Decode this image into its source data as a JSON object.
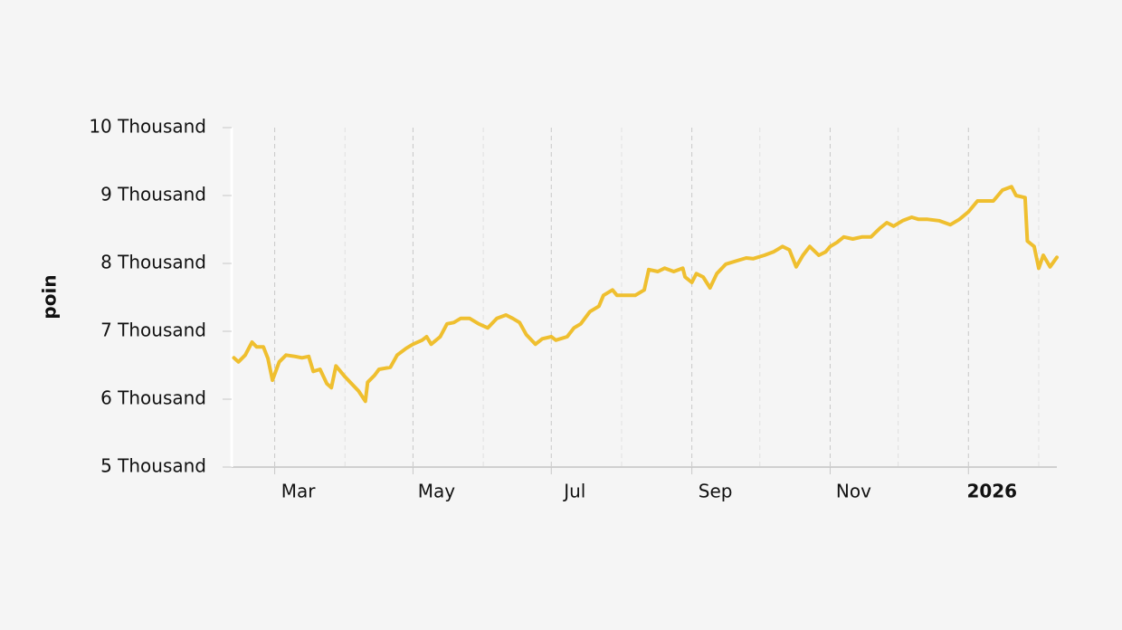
{
  "chart_data": {
    "type": "line",
    "ylabel": "poin",
    "x": [
      "2025-02-11",
      "2025-02-13",
      "2025-02-16",
      "2025-02-19",
      "2025-02-21",
      "2025-02-24",
      "2025-02-26",
      "2025-02-28",
      "2025-03-03",
      "2025-03-06",
      "2025-03-10",
      "2025-03-13",
      "2025-03-16",
      "2025-03-18",
      "2025-03-21",
      "2025-03-24",
      "2025-03-26",
      "2025-03-28",
      "2025-04-01",
      "2025-04-07",
      "2025-04-10",
      "2025-04-11",
      "2025-04-14",
      "2025-04-16",
      "2025-04-21",
      "2025-04-24",
      "2025-04-28",
      "2025-05-01",
      "2025-05-05",
      "2025-05-07",
      "2025-05-09",
      "2025-05-13",
      "2025-05-16",
      "2025-05-19",
      "2025-05-22",
      "2025-05-26",
      "2025-05-30",
      "2025-06-03",
      "2025-06-07",
      "2025-06-11",
      "2025-06-14",
      "2025-06-17",
      "2025-06-20",
      "2025-06-24",
      "2025-06-27",
      "2025-07-01",
      "2025-07-03",
      "2025-07-08",
      "2025-07-11",
      "2025-07-14",
      "2025-07-18",
      "2025-07-22",
      "2025-07-24",
      "2025-07-28",
      "2025-07-30",
      "2025-08-03",
      "2025-08-07",
      "2025-08-11",
      "2025-08-13",
      "2025-08-17",
      "2025-08-20",
      "2025-08-24",
      "2025-08-28",
      "2025-08-29",
      "2025-09-01",
      "2025-09-03",
      "2025-09-06",
      "2025-09-09",
      "2025-09-12",
      "2025-09-16",
      "2025-09-21",
      "2025-09-25",
      "2025-09-28",
      "2025-10-03",
      "2025-10-07",
      "2025-10-11",
      "2025-10-14",
      "2025-10-17",
      "2025-10-20",
      "2025-10-23",
      "2025-10-27",
      "2025-10-30",
      "2025-11-01",
      "2025-11-04",
      "2025-11-07",
      "2025-11-11",
      "2025-11-15",
      "2025-11-19",
      "2025-11-23",
      "2025-11-26",
      "2025-11-29",
      "2025-12-03",
      "2025-12-07",
      "2025-12-10",
      "2025-12-14",
      "2025-12-19",
      "2025-12-24",
      "2025-12-28",
      "2026-01-01",
      "2026-01-05",
      "2026-01-09",
      "2026-01-12",
      "2026-01-16",
      "2026-01-20",
      "2026-01-22",
      "2026-01-26",
      "2026-01-27",
      "2026-01-30",
      "2026-02-01",
      "2026-02-03",
      "2026-02-06",
      "2026-02-09"
    ],
    "series": [
      {
        "color": "#efbf2f",
        "values": [
          6610,
          6550,
          6650,
          6840,
          6770,
          6770,
          6600,
          6280,
          6550,
          6650,
          6630,
          6610,
          6630,
          6410,
          6440,
          6230,
          6170,
          6490,
          6330,
          6120,
          5970,
          6250,
          6350,
          6440,
          6470,
          6650,
          6750,
          6810,
          6870,
          6920,
          6810,
          6920,
          7110,
          7130,
          7190,
          7190,
          7110,
          7050,
          7190,
          7240,
          7190,
          7130,
          6950,
          6810,
          6890,
          6920,
          6870,
          6920,
          7050,
          7110,
          7290,
          7370,
          7530,
          7610,
          7530,
          7530,
          7530,
          7610,
          7910,
          7880,
          7930,
          7880,
          7930,
          7800,
          7720,
          7850,
          7800,
          7640,
          7850,
          7990,
          8040,
          8080,
          8070,
          8120,
          8170,
          8250,
          8200,
          7950,
          8120,
          8250,
          8120,
          8170,
          8250,
          8310,
          8390,
          8360,
          8390,
          8390,
          8520,
          8600,
          8550,
          8630,
          8680,
          8650,
          8650,
          8630,
          8570,
          8650,
          8760,
          8920,
          8920,
          8920,
          9080,
          9130,
          9000,
          8970,
          8330,
          8250,
          7930,
          8120,
          7950,
          8090
        ]
      }
    ],
    "xlim": [
      "2025-02-10",
      "2026-02-09"
    ],
    "xticks": [
      {
        "value": "2025-03-01",
        "label": "Mar"
      },
      {
        "value": "2025-05-01",
        "label": "May"
      },
      {
        "value": "2025-07-01",
        "label": "Jul"
      },
      {
        "value": "2025-09-01",
        "label": "Sep"
      },
      {
        "value": "2025-11-01",
        "label": "Nov"
      },
      {
        "value": "2026-01-01",
        "label": "2026"
      }
    ],
    "minor_xticks": [
      "2025-04-01",
      "2025-06-01",
      "2025-08-01",
      "2025-10-01",
      "2025-12-01",
      "2026-02-01"
    ],
    "ylim": [
      5000,
      10000
    ],
    "yticks": [
      {
        "value": 5000,
        "label": "5 Thousand"
      },
      {
        "value": 6000,
        "label": "6 Thousand"
      },
      {
        "value": 7000,
        "label": "7 Thousand"
      },
      {
        "value": 8000,
        "label": "8 Thousand"
      },
      {
        "value": 9000,
        "label": "9 Thousand"
      },
      {
        "value": 10000,
        "label": "10 Thousand"
      }
    ],
    "grid": true,
    "bold_xtick": "2026"
  }
}
